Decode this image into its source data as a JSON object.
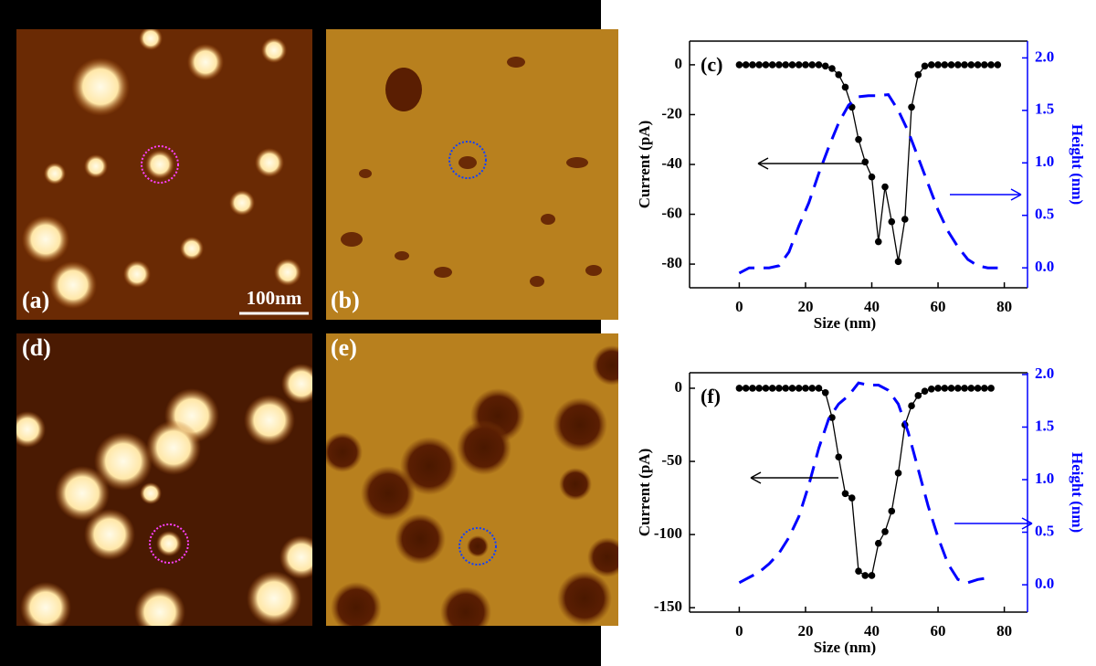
{
  "panels": [
    {
      "label": "(a)"
    },
    {
      "label": "(b)"
    },
    {
      "label": "(d)"
    },
    {
      "label": "(e)"
    }
  ],
  "scale_bar": "100nm",
  "chart_data": [
    {
      "type": "line",
      "annotation": "(c)",
      "xlabel": "Size (nm)",
      "ylabel": "Current (pA)",
      "y2label": "Height (nm)",
      "xlim": [
        -15,
        87
      ],
      "xticks": [
        0,
        20,
        40,
        60,
        80
      ],
      "ylim": [
        -89.5,
        9.5
      ],
      "yticks": [
        0,
        -20,
        -40,
        -60,
        -80
      ],
      "y2lim": [
        -0.19,
        2.16
      ],
      "y2ticks": [
        {
          "value": 0,
          "label": "0.0"
        },
        {
          "value": 0.5,
          "label": "0.5"
        },
        {
          "value": 1,
          "label": "1.0"
        },
        {
          "value": 1.5,
          "label": "1.5"
        },
        {
          "value": 2,
          "label": "2.0"
        }
      ],
      "series": [
        {
          "color": "#000000",
          "x": [
            0,
            2,
            4,
            6,
            8,
            10,
            12,
            14,
            16,
            18,
            20,
            22,
            24,
            26,
            28,
            30,
            32,
            34,
            36,
            38,
            40,
            42,
            44,
            46,
            48,
            50,
            52,
            54,
            56,
            58,
            60,
            62,
            64,
            66,
            68,
            70,
            72,
            74,
            76,
            78
          ],
          "values": [
            0,
            0,
            0,
            0,
            0,
            0,
            0,
            0,
            0,
            0,
            0,
            0,
            0,
            -0.5,
            -1.5,
            -4,
            -9,
            -17,
            -30,
            -39,
            -45,
            -71,
            -49,
            -63,
            -79,
            -62,
            -17,
            -4,
            -0.5,
            0,
            0,
            0,
            0,
            0,
            0,
            0,
            0,
            0,
            0,
            0
          ]
        },
        {
          "color": "#0000ff",
          "axis": "y2",
          "x": [
            0,
            3,
            6,
            9,
            12,
            15,
            18,
            21,
            24,
            27,
            30,
            33,
            36,
            39,
            42,
            45,
            48,
            51,
            54,
            57,
            60,
            63,
            66,
            69,
            72,
            75,
            78
          ],
          "values": [
            -0.05,
            0,
            0,
            0,
            0.02,
            0.15,
            0.4,
            0.62,
            0.9,
            1.15,
            1.38,
            1.55,
            1.63,
            1.64,
            1.64,
            1.65,
            1.5,
            1.3,
            1.05,
            0.8,
            0.55,
            0.35,
            0.2,
            0.08,
            0.02,
            0,
            0
          ]
        }
      ]
    },
    {
      "type": "line",
      "annotation": "(f)",
      "xlabel": "Size (nm)",
      "ylabel": "Current (pA)",
      "y2label": "Height (nm)",
      "xlim": [
        -15,
        87
      ],
      "xticks": [
        0,
        20,
        40,
        60,
        80
      ],
      "ylim": [
        -153,
        10.6
      ],
      "yticks": [
        0,
        -50,
        -100,
        -150
      ],
      "y2lim": [
        -0.26,
        2.017
      ],
      "y2ticks": [
        {
          "value": 0,
          "label": "0.0"
        },
        {
          "value": 0.5,
          "label": "0.5"
        },
        {
          "value": 1,
          "label": "1.0"
        },
        {
          "value": 1.5,
          "label": "1.5"
        },
        {
          "value": 2,
          "label": "2.0"
        }
      ],
      "series": [
        {
          "color": "#000000",
          "x": [
            0,
            2,
            4,
            6,
            8,
            10,
            12,
            14,
            16,
            18,
            20,
            22,
            24,
            26,
            28,
            30,
            32,
            34,
            36,
            38,
            40,
            42,
            44,
            46,
            48,
            50,
            52,
            54,
            56,
            58,
            60,
            62,
            64,
            66,
            68,
            70,
            72,
            74,
            76
          ],
          "values": [
            0,
            0,
            0,
            0,
            0,
            0,
            0,
            0,
            0,
            0,
            0,
            0,
            0,
            -3,
            -20,
            -47,
            -72,
            -75,
            -125,
            -128,
            -128,
            -106,
            -98,
            -84,
            -58,
            -25,
            -12,
            -5,
            -2,
            -0.5,
            0,
            0,
            0,
            0,
            0,
            0,
            0,
            0,
            0
          ]
        },
        {
          "color": "#0000ff",
          "axis": "y2",
          "x": [
            0,
            3,
            6,
            9,
            12,
            15,
            18,
            21,
            24,
            27,
            30,
            33,
            36,
            39,
            42,
            45,
            48,
            51,
            54,
            57,
            60,
            63,
            66,
            69,
            72,
            74
          ],
          "values": [
            0.02,
            0.07,
            0.12,
            0.2,
            0.3,
            0.45,
            0.65,
            0.95,
            1.3,
            1.58,
            1.72,
            1.8,
            1.92,
            1.9,
            1.9,
            1.85,
            1.72,
            1.45,
            1.1,
            0.75,
            0.45,
            0.2,
            0.05,
            0.02,
            0.05,
            0.06
          ]
        }
      ]
    }
  ]
}
